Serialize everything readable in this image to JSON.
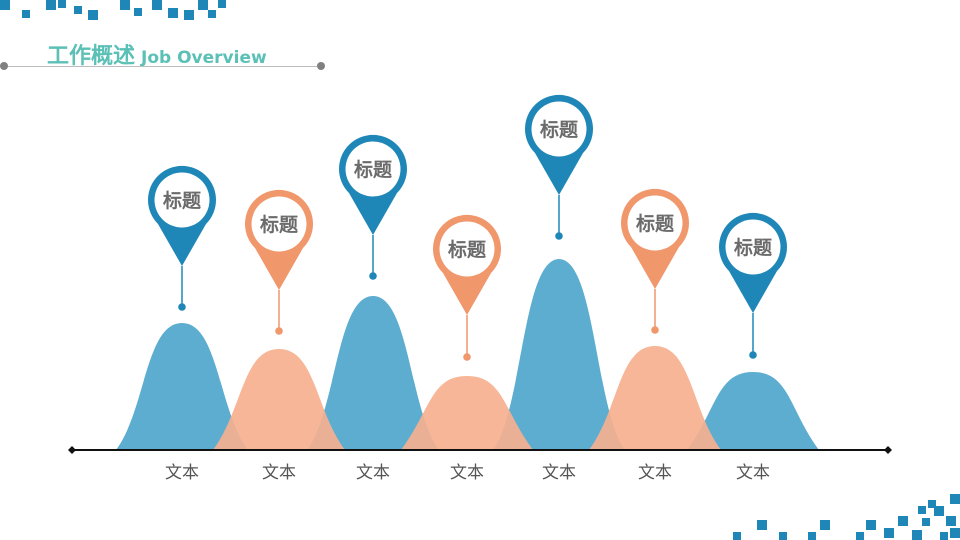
{
  "title": {
    "cn": "工作概述",
    "en": "Job Overview"
  },
  "colors": {
    "blue": "#1e87b8",
    "blue_hill": "#4ea6cc",
    "orange": "#f0976c",
    "orange_hill": "#f6b08f",
    "accent_text": "#5bc0b6"
  },
  "items": [
    {
      "title": "标题",
      "text": "文本",
      "color": "blue"
    },
    {
      "title": "标题",
      "text": "文本",
      "color": "orange"
    },
    {
      "title": "标题",
      "text": "文本",
      "color": "blue"
    },
    {
      "title": "标题",
      "text": "文本",
      "color": "orange"
    },
    {
      "title": "标题",
      "text": "文本",
      "color": "blue"
    },
    {
      "title": "标题",
      "text": "文本",
      "color": "orange"
    },
    {
      "title": "标题",
      "text": "文本",
      "color": "blue"
    }
  ]
}
